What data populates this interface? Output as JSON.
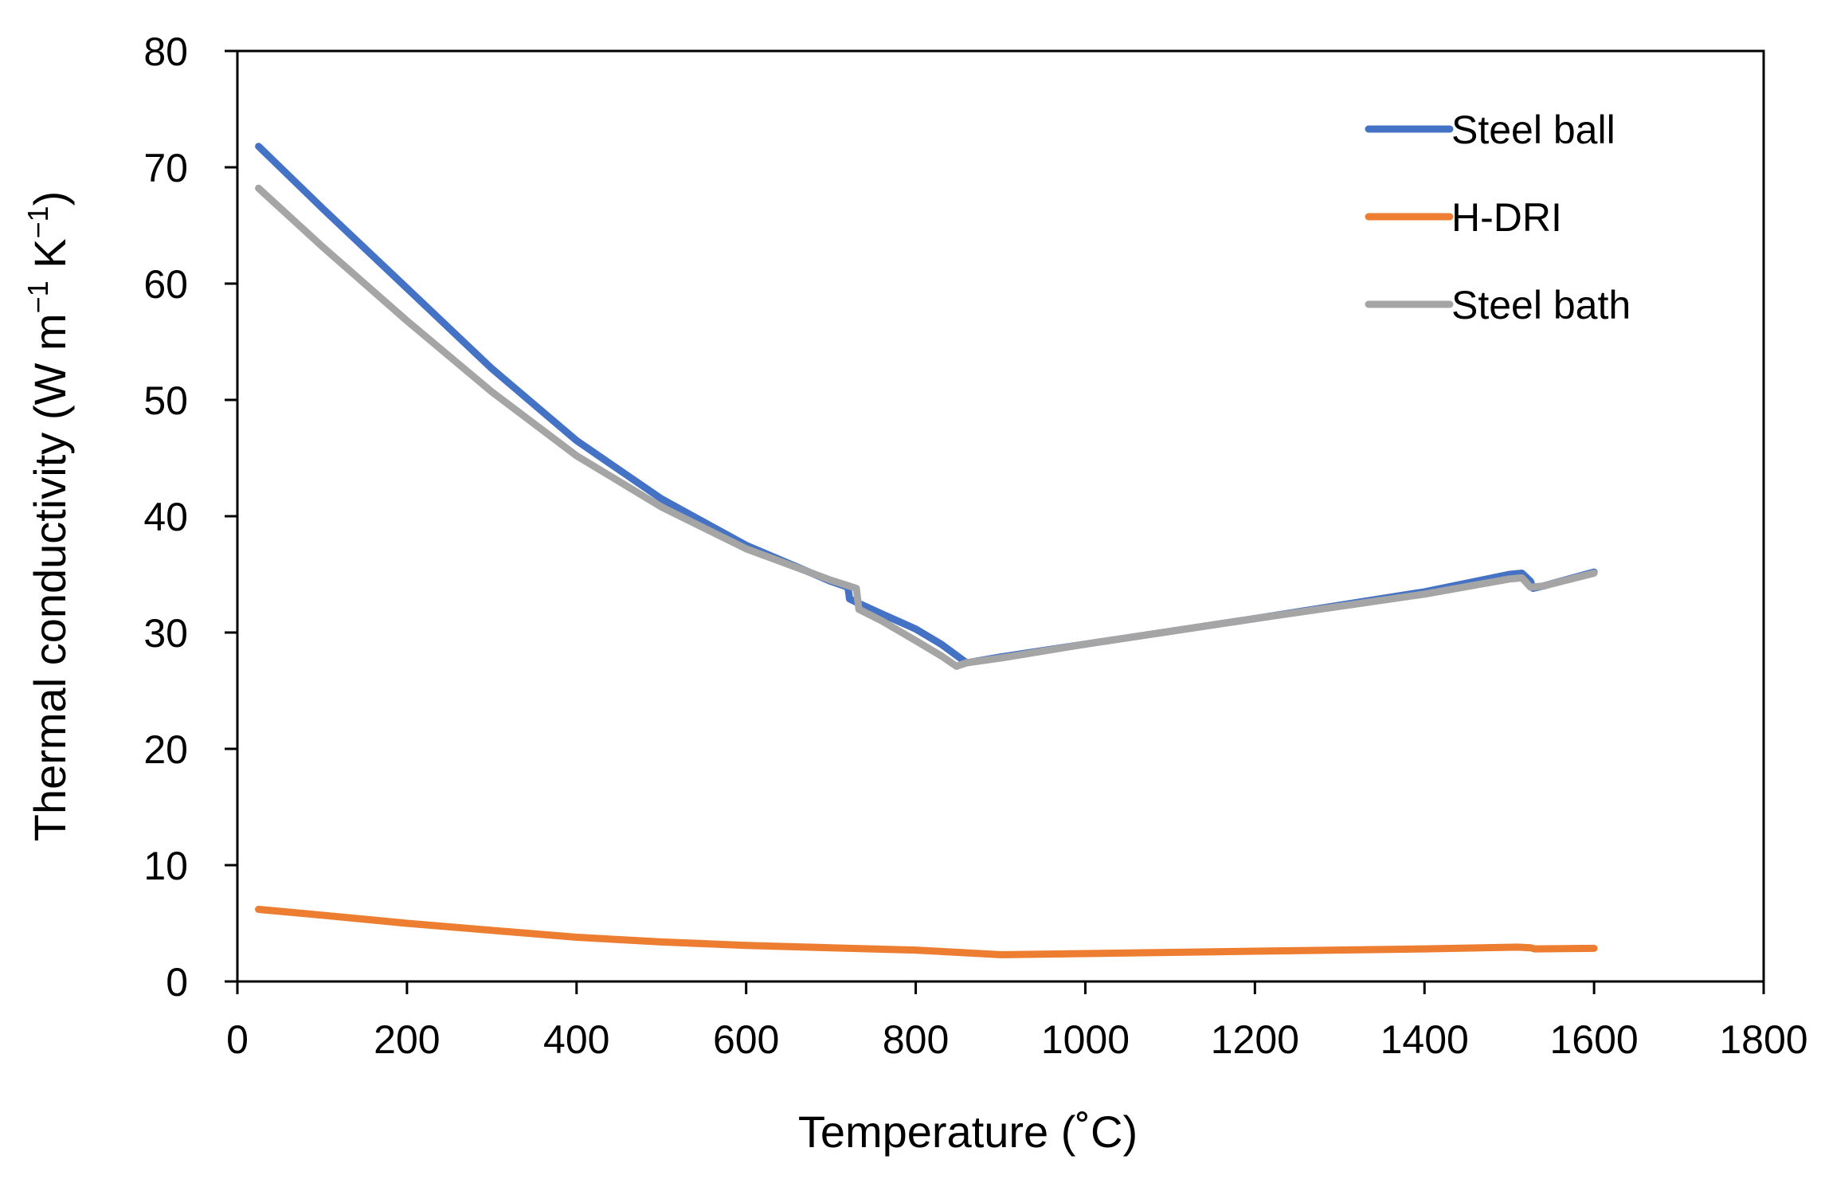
{
  "chart_data": {
    "type": "line",
    "title": "",
    "xlabel": "Temperature (˚C)",
    "ylabel": {
      "text": "Thermal conductivity (W m",
      "sup1": "−1",
      "mid": " K",
      "sup2": "−1",
      "end": ")"
    },
    "xlim": [
      0,
      1800
    ],
    "ylim": [
      0,
      80
    ],
    "xticks": [
      0,
      200,
      400,
      600,
      800,
      1000,
      1200,
      1400,
      1600,
      1800
    ],
    "yticks": [
      0,
      10,
      20,
      30,
      40,
      50,
      60,
      70,
      80
    ],
    "grid": false,
    "legend_position": "top-right",
    "series": [
      {
        "name": "Steel ball",
        "color": "#4472C4",
        "points": [
          [
            25,
            71.8
          ],
          [
            100,
            66.5
          ],
          [
            200,
            59.6
          ],
          [
            300,
            52.7
          ],
          [
            400,
            46.5
          ],
          [
            500,
            41.5
          ],
          [
            600,
            37.5
          ],
          [
            700,
            34.4
          ],
          [
            720,
            33.9
          ],
          [
            722,
            32.9
          ],
          [
            730,
            32.6
          ],
          [
            760,
            31.6
          ],
          [
            800,
            30.3
          ],
          [
            830,
            29.0
          ],
          [
            860,
            27.4
          ],
          [
            900,
            27.9
          ],
          [
            1000,
            29.0
          ],
          [
            1200,
            31.2
          ],
          [
            1400,
            33.5
          ],
          [
            1500,
            35.0
          ],
          [
            1515,
            35.1
          ],
          [
            1525,
            34.4
          ],
          [
            1528,
            33.8
          ],
          [
            1540,
            34.0
          ],
          [
            1600,
            35.2
          ]
        ]
      },
      {
        "name": "H-DRI",
        "color": "#ED7D31",
        "points": [
          [
            25,
            6.2
          ],
          [
            100,
            5.7
          ],
          [
            200,
            5.0
          ],
          [
            300,
            4.4
          ],
          [
            400,
            3.8
          ],
          [
            500,
            3.4
          ],
          [
            600,
            3.1
          ],
          [
            700,
            2.9
          ],
          [
            800,
            2.7
          ],
          [
            850,
            2.5
          ],
          [
            900,
            2.3
          ],
          [
            1000,
            2.4
          ],
          [
            1200,
            2.6
          ],
          [
            1400,
            2.8
          ],
          [
            1510,
            2.95
          ],
          [
            1525,
            2.9
          ],
          [
            1530,
            2.8
          ],
          [
            1600,
            2.85
          ]
        ]
      },
      {
        "name": "Steel bath",
        "color": "#A5A5A5",
        "points": [
          [
            25,
            68.2
          ],
          [
            100,
            63.2
          ],
          [
            200,
            56.8
          ],
          [
            300,
            50.7
          ],
          [
            400,
            45.2
          ],
          [
            500,
            40.8
          ],
          [
            600,
            37.2
          ],
          [
            700,
            34.5
          ],
          [
            730,
            33.8
          ],
          [
            733,
            32.0
          ],
          [
            760,
            31.0
          ],
          [
            800,
            29.3
          ],
          [
            830,
            28.0
          ],
          [
            848,
            27.1
          ],
          [
            860,
            27.4
          ],
          [
            900,
            27.8
          ],
          [
            1000,
            29.0
          ],
          [
            1200,
            31.2
          ],
          [
            1400,
            33.3
          ],
          [
            1500,
            34.6
          ],
          [
            1515,
            34.7
          ],
          [
            1525,
            33.9
          ],
          [
            1540,
            34.0
          ],
          [
            1600,
            35.1
          ]
        ]
      }
    ]
  }
}
